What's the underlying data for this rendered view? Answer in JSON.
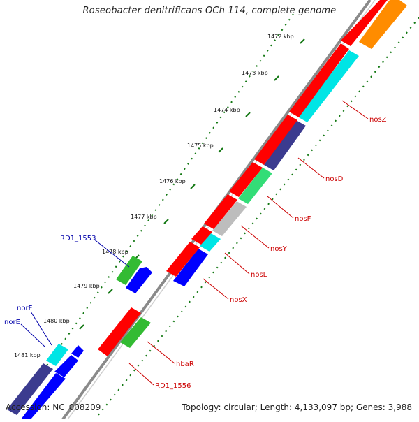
{
  "title": "Roseobacter denitrificans OCh 114, complete genome",
  "footer": {
    "accession": "Accession: NC_008209",
    "summary": "Topology: circular; Length: 4,133,097 bp; Genes: 3,988"
  },
  "ticks": [
    "1472 kbp",
    "1473 kbp",
    "1474 kbp",
    "1475 kbp",
    "1476 kbp",
    "1477 kbp",
    "1478 kbp",
    "1479 kbp",
    "1480 kbp",
    "1481 kbp"
  ],
  "gene_labels": {
    "RD1_1553": "RD1_1553",
    "norF": "norF",
    "norE": "norE",
    "nosZ": "nosZ",
    "nosD": "nosD",
    "nosF": "nosF",
    "nosY": "nosY",
    "nosL": "nosL",
    "nosX": "nosX",
    "hbaR": "hbaR",
    "RD1_1556": "RD1_1556"
  },
  "colors": {
    "red": "#ff0000",
    "orange": "#ff8c00",
    "cyan": "#00e5e5",
    "darkblue": "#3b3b8f",
    "green": "#33dd77",
    "grey": "#bdbdbd",
    "blue": "#0000ff",
    "olive_green": "#33bb33",
    "label_blue": "#0000aa",
    "label_red": "#cc0000",
    "tick_green": "#117711",
    "backbone": "#808080"
  }
}
